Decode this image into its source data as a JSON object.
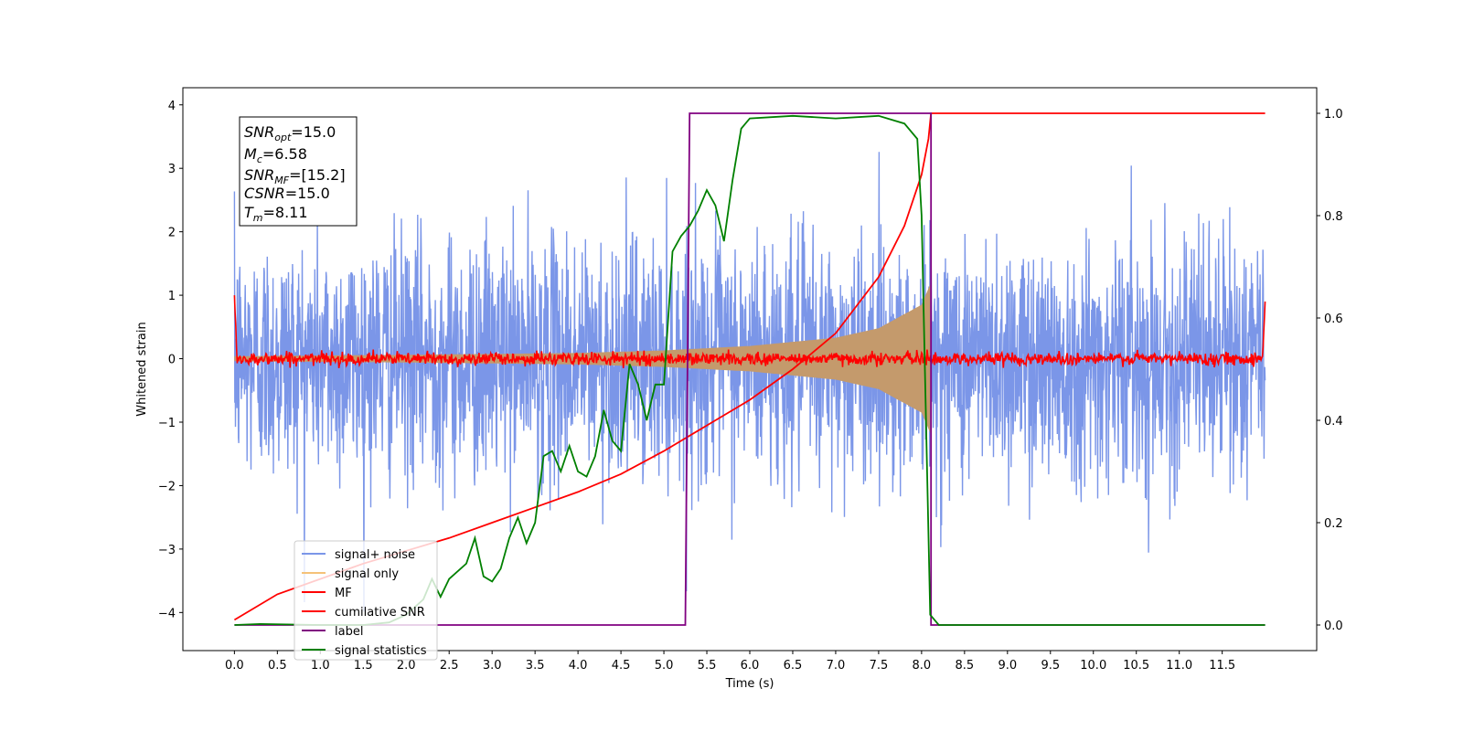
{
  "chart_data": {
    "type": "line",
    "xlabel": "Time (s)",
    "ylabel": "Whitened strain",
    "xlim": [
      -0.6,
      12.6
    ],
    "ylim": [
      -4.6,
      4.27
    ],
    "y2lim": [
      -0.05,
      1.05
    ],
    "xticks": [
      0.0,
      0.5,
      1.0,
      1.5,
      2.0,
      2.5,
      3.0,
      3.5,
      4.0,
      4.5,
      5.0,
      5.5,
      6.0,
      6.5,
      7.0,
      7.5,
      8.0,
      8.5,
      9.0,
      9.5,
      10.0,
      10.5,
      11.0,
      11.5
    ],
    "xtick_labels": [
      "0.0",
      "0.5",
      "1.0",
      "1.5",
      "2.0",
      "2.5",
      "3.0",
      "3.5",
      "4.0",
      "4.5",
      "5.0",
      "5.5",
      "6.0",
      "6.5",
      "7.0",
      "7.5",
      "8.0",
      "8.5",
      "9.0",
      "9.5",
      "10.0",
      "10.5",
      "11.0",
      "11.5"
    ],
    "yticks": [
      4,
      3,
      2,
      1,
      0,
      -1,
      -2,
      -3,
      -4
    ],
    "ytick_labels": [
      "4",
      "3",
      "2",
      "1",
      "0",
      "−1",
      "−2",
      "−3",
      "−4"
    ],
    "y2ticks": [
      1.0,
      0.8,
      0.6,
      0.4,
      0.2,
      0.0
    ],
    "y2tick_labels": [
      "1.0",
      "0.8",
      "0.6",
      "0.4",
      "0.2",
      "0.0"
    ],
    "annotation": {
      "snr_opt": "=15.0",
      "mc": "=6.58",
      "snr_mf": "=[15.2]",
      "csnr": "=15.0",
      "tm": "=8.11"
    },
    "legend_position": "lower left",
    "series": [
      {
        "name": "signal+ noise",
        "color": "#7b96e8",
        "axis": "left",
        "description_values": {
          "t_start": 0.0,
          "t_end": 12.0,
          "std": 0.95,
          "peak_min": -4.15,
          "peak_max": 3.5
        }
      },
      {
        "name": "signal only",
        "color": "#f5c278",
        "axis": "left",
        "envelope": {
          "t": [
            0.0,
            2.0,
            4.0,
            5.0,
            6.0,
            7.0,
            7.5,
            8.0,
            8.11
          ],
          "amplitude": [
            0.04,
            0.06,
            0.09,
            0.13,
            0.2,
            0.33,
            0.48,
            0.85,
            1.2
          ]
        }
      },
      {
        "name": "MF",
        "color": "#ff0000",
        "axis": "left",
        "description_values": {
          "t_start": 0.0,
          "t_end": 12.0,
          "std": 0.05,
          "start_value": 1.0,
          "end_value": 0.9
        }
      },
      {
        "name": "cumilative SNR",
        "color": "#ff0000",
        "axis": "right",
        "t": [
          0.0,
          0.5,
          1.0,
          1.5,
          2.0,
          2.5,
          3.0,
          3.5,
          4.0,
          4.5,
          5.0,
          5.5,
          6.0,
          6.5,
          7.0,
          7.5,
          7.8,
          8.0,
          8.08,
          8.11,
          12.0
        ],
        "values": [
          0.01,
          0.06,
          0.09,
          0.12,
          0.145,
          0.17,
          0.2,
          0.23,
          0.26,
          0.295,
          0.34,
          0.39,
          0.44,
          0.5,
          0.57,
          0.68,
          0.78,
          0.88,
          0.95,
          1.0,
          1.0
        ]
      },
      {
        "name": "label",
        "color": "#800080",
        "axis": "right",
        "t": [
          0.0,
          5.25,
          5.25,
          5.3,
          8.05,
          8.11,
          8.11,
          12.0
        ],
        "values": [
          0.0,
          0.0,
          0.0,
          1.0,
          1.0,
          1.0,
          0.0,
          0.0
        ]
      },
      {
        "name": "signal statistics",
        "color": "#008000",
        "axis": "right",
        "t": [
          0.0,
          0.3,
          1.0,
          1.5,
          1.8,
          2.0,
          2.2,
          2.3,
          2.4,
          2.5,
          2.7,
          2.8,
          2.9,
          3.0,
          3.1,
          3.2,
          3.3,
          3.4,
          3.5,
          3.6,
          3.7,
          3.8,
          3.9,
          4.0,
          4.1,
          4.2,
          4.3,
          4.4,
          4.5,
          4.6,
          4.7,
          4.8,
          4.9,
          5.0,
          5.1,
          5.2,
          5.3,
          5.4,
          5.5,
          5.6,
          5.7,
          5.8,
          5.9,
          6.0,
          6.5,
          7.0,
          7.5,
          7.8,
          7.95,
          8.0,
          8.1,
          8.2,
          8.3,
          12.0
        ],
        "values": [
          0.0,
          0.002,
          0.0,
          0.0,
          0.005,
          0.02,
          0.05,
          0.09,
          0.055,
          0.09,
          0.12,
          0.17,
          0.095,
          0.085,
          0.11,
          0.17,
          0.21,
          0.16,
          0.2,
          0.33,
          0.34,
          0.3,
          0.35,
          0.3,
          0.29,
          0.33,
          0.42,
          0.36,
          0.34,
          0.51,
          0.47,
          0.4,
          0.47,
          0.47,
          0.73,
          0.76,
          0.78,
          0.81,
          0.85,
          0.82,
          0.75,
          0.87,
          0.97,
          0.99,
          0.995,
          0.99,
          0.995,
          0.98,
          0.95,
          0.8,
          0.02,
          0.0,
          0.0,
          0.0
        ]
      }
    ]
  }
}
